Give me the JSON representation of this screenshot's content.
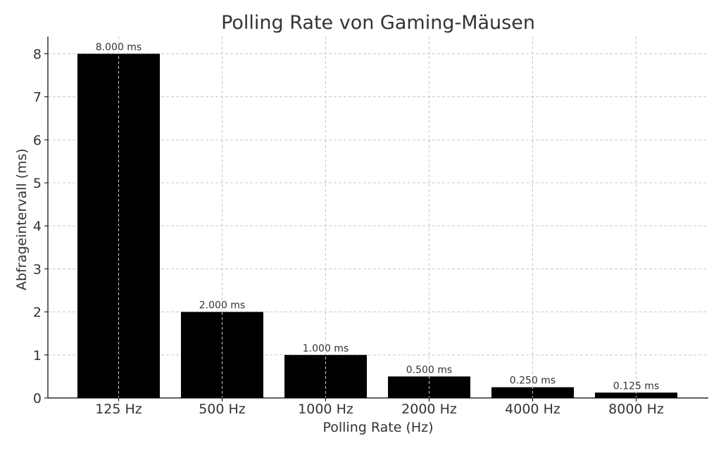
{
  "chart_data": {
    "type": "bar",
    "title": "Polling Rate von Gaming-Mäusen",
    "xlabel": "Polling Rate (Hz)",
    "ylabel": "Abfrageintervall (ms)",
    "categories": [
      "125 Hz",
      "500 Hz",
      "1000 Hz",
      "2000 Hz",
      "4000 Hz",
      "8000 Hz"
    ],
    "values": [
      8.0,
      2.0,
      1.0,
      0.5,
      0.25,
      0.125
    ],
    "data_labels": [
      "8.000 ms",
      "2.000 ms",
      "1.000 ms",
      "0.500 ms",
      "0.250 ms",
      "0.125 ms"
    ],
    "ylim": [
      0,
      8.4
    ],
    "yticks": [
      0,
      1,
      2,
      3,
      4,
      5,
      6,
      7,
      8
    ],
    "grid": true,
    "bar_color": "#000000",
    "grid_color": "#c8c8c8"
  }
}
